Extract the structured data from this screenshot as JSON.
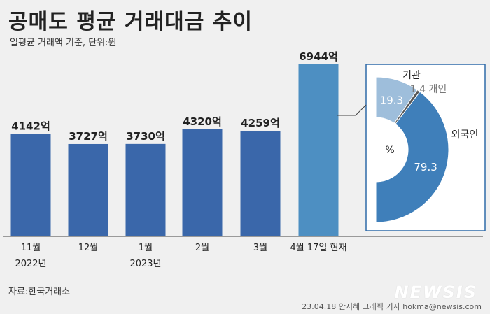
{
  "header": {
    "title": "공매도 평균 거래대금 추이",
    "subtitle": "일평균 거래액 기준, 단위:원"
  },
  "footer": {
    "source": "자료:한국거래소",
    "credit": "23.04.18 안지혜 그래픽 기자 hokma@newsis.com",
    "watermark": "NEWSIS"
  },
  "colors": {
    "bar": "#3a67aa",
    "bar_highlight": "#4d8fc2",
    "donut_main": "#3f7fba",
    "donut_light": "#9ebedb",
    "donut_panel": "#ffffff",
    "donut_border": "#2f6aa8"
  },
  "chart_data": [
    {
      "type": "bar",
      "categories": [
        "11월",
        "12월",
        "1월",
        "2월",
        "3월",
        "4월 17일 현재"
      ],
      "year_labels": [
        "2022년",
        "",
        "2023년",
        "",
        "",
        ""
      ],
      "values": [
        4142,
        3727,
        3730,
        4320,
        4259,
        6944
      ],
      "value_labels": [
        "4142억",
        "3727억",
        "3730억",
        "4320억",
        "4259억",
        "6944억"
      ],
      "highlight_index": 5,
      "ylim": [
        0,
        7000
      ]
    },
    {
      "type": "pie",
      "style": "half-donut",
      "center_label": "%",
      "slices": [
        {
          "name": "기관",
          "value": 19.3,
          "label": "19.3"
        },
        {
          "name": "개인",
          "value": 1.4,
          "label": "1.4 개인"
        },
        {
          "name": "외국인",
          "value": 79.3,
          "label": "79.3"
        }
      ],
      "name_labels": {
        "institution": "기관",
        "foreigner": "외국인"
      }
    }
  ]
}
